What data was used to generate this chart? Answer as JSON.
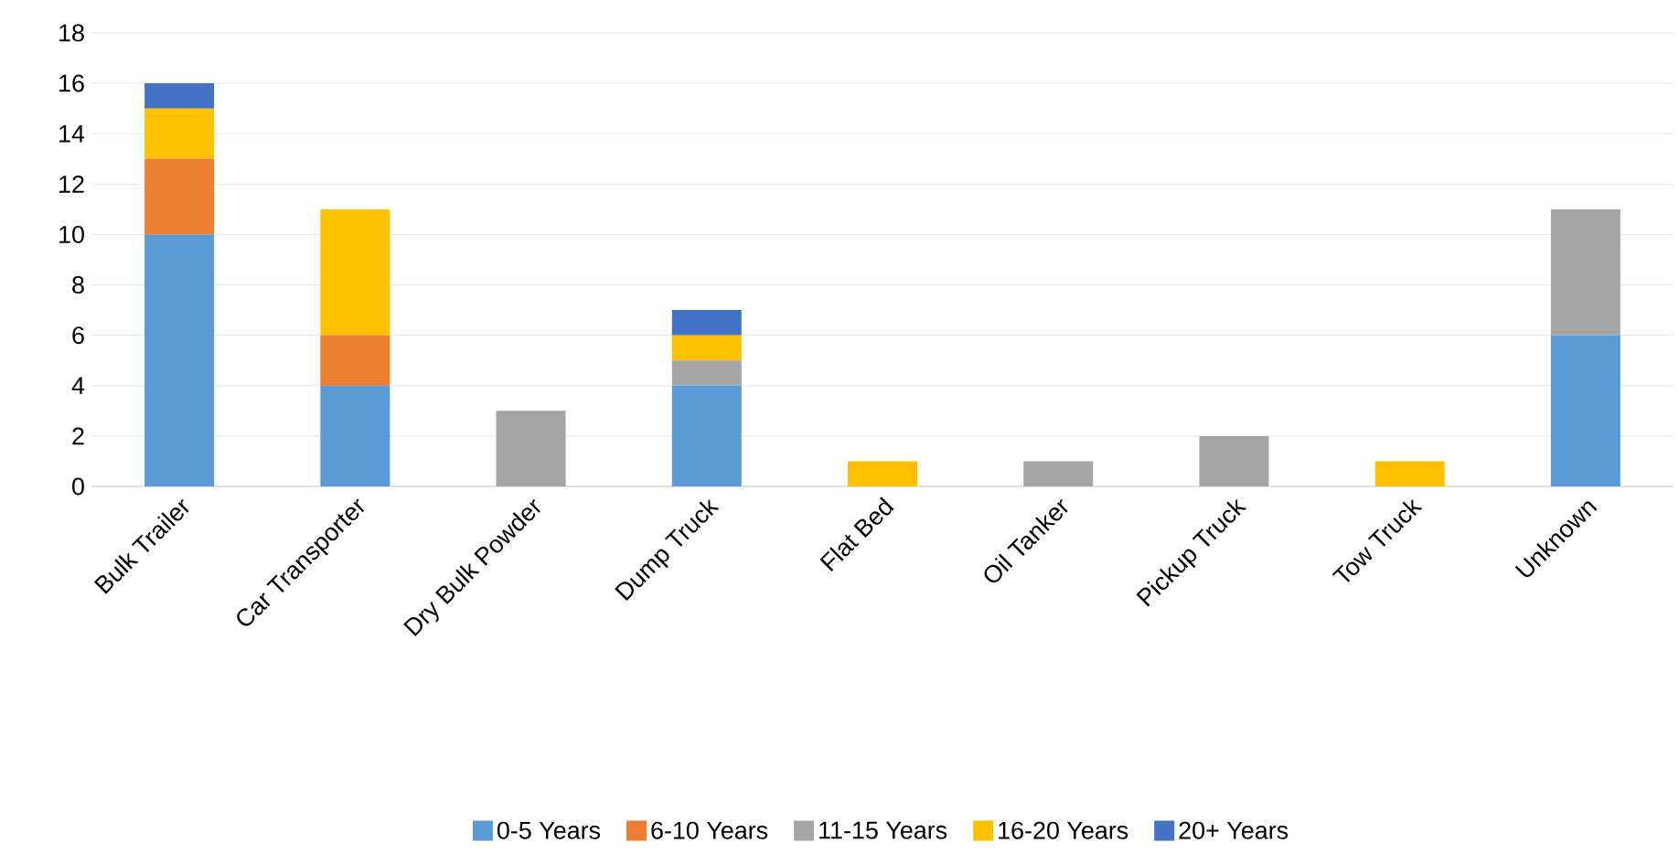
{
  "chart_data": {
    "type": "bar",
    "stacked": true,
    "grid": "y",
    "legend": "bottom",
    "categories": [
      "Bulk Trailer",
      "Car Transporter",
      "Dry Bulk Powder",
      "Dump Truck",
      "Flat Bed",
      "Oil Tanker",
      "Pickup Truck",
      "Tow Truck",
      "Unknown"
    ],
    "series": [
      {
        "name": "0-5 Years",
        "color": "#5b9bd5",
        "values": [
          10,
          4,
          0,
          4,
          0,
          0,
          0,
          0,
          6
        ]
      },
      {
        "name": "6-10 Years",
        "color": "#ed7d31",
        "values": [
          3,
          2,
          0,
          0,
          0,
          0,
          0,
          0,
          0
        ]
      },
      {
        "name": "11-15 Years",
        "color": "#a5a5a5",
        "values": [
          0,
          0,
          3,
          1,
          0,
          1,
          2,
          0,
          5
        ]
      },
      {
        "name": "16-20 Years",
        "color": "#ffc000",
        "values": [
          2,
          5,
          0,
          1,
          1,
          0,
          0,
          1,
          0
        ]
      },
      {
        "name": "20+ Years",
        "color": "#4472c4",
        "values": [
          1,
          0,
          0,
          1,
          0,
          0,
          0,
          0,
          0
        ]
      }
    ],
    "ylim": [
      0,
      18
    ],
    "yticks": [
      0,
      2,
      4,
      6,
      8,
      10,
      12,
      14,
      16,
      18
    ]
  }
}
